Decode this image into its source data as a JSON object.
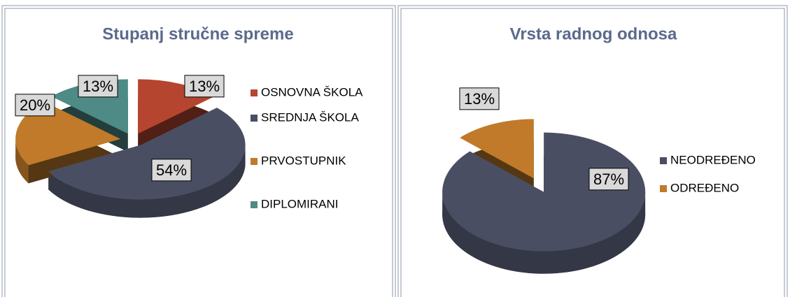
{
  "chart_data": [
    {
      "type": "pie",
      "title": "Stupanj stručne spreme",
      "categories": [
        "OSNOVNA ŠKOLA",
        "SREDNJA ŠKOLA",
        "PRVOSTUPNIK",
        "DIPLOMIRANI"
      ],
      "values": [
        13,
        54,
        20,
        13
      ],
      "value_labels": [
        "13%",
        "54%",
        "20%",
        "13%"
      ],
      "colors": [
        "#b5452e",
        "#4a4e62",
        "#c07a2a",
        "#4e8a86"
      ],
      "legend": "right"
    },
    {
      "type": "pie",
      "title": "Vrsta radnog odnosa",
      "categories": [
        "NEODREĐENO",
        "ODREĐENO"
      ],
      "values": [
        87,
        13
      ],
      "value_labels": [
        "87%",
        "13%"
      ],
      "colors": [
        "#4a4e62",
        "#c07a2a"
      ],
      "legend": "right"
    }
  ]
}
